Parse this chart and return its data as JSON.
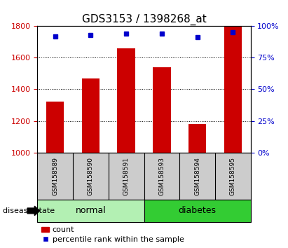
{
  "title": "GDS3153 / 1398268_at",
  "samples": [
    "GSM158589",
    "GSM158590",
    "GSM158591",
    "GSM158593",
    "GSM158594",
    "GSM158595"
  ],
  "counts": [
    1320,
    1470,
    1660,
    1540,
    1180,
    1800
  ],
  "percentiles": [
    92,
    93,
    94,
    94,
    91,
    95
  ],
  "ylim_left": [
    1000,
    1800
  ],
  "ylim_right": [
    0,
    100
  ],
  "yticks_left": [
    1000,
    1200,
    1400,
    1600,
    1800
  ],
  "yticks_right": [
    0,
    25,
    50,
    75,
    100
  ],
  "bar_color": "#cc0000",
  "dot_color": "#0000cc",
  "normal_color": "#b3f0b3",
  "diabetes_color": "#33cc33",
  "disease_state_label": "disease state",
  "legend_count": "count",
  "legend_percentile": "percentile rank within the sample",
  "tick_bg_color": "#cccccc",
  "bar_width": 0.5,
  "title_fontsize": 11,
  "tick_fontsize": 8,
  "sample_fontsize": 6.5,
  "group_fontsize": 9,
  "legend_fontsize": 8
}
